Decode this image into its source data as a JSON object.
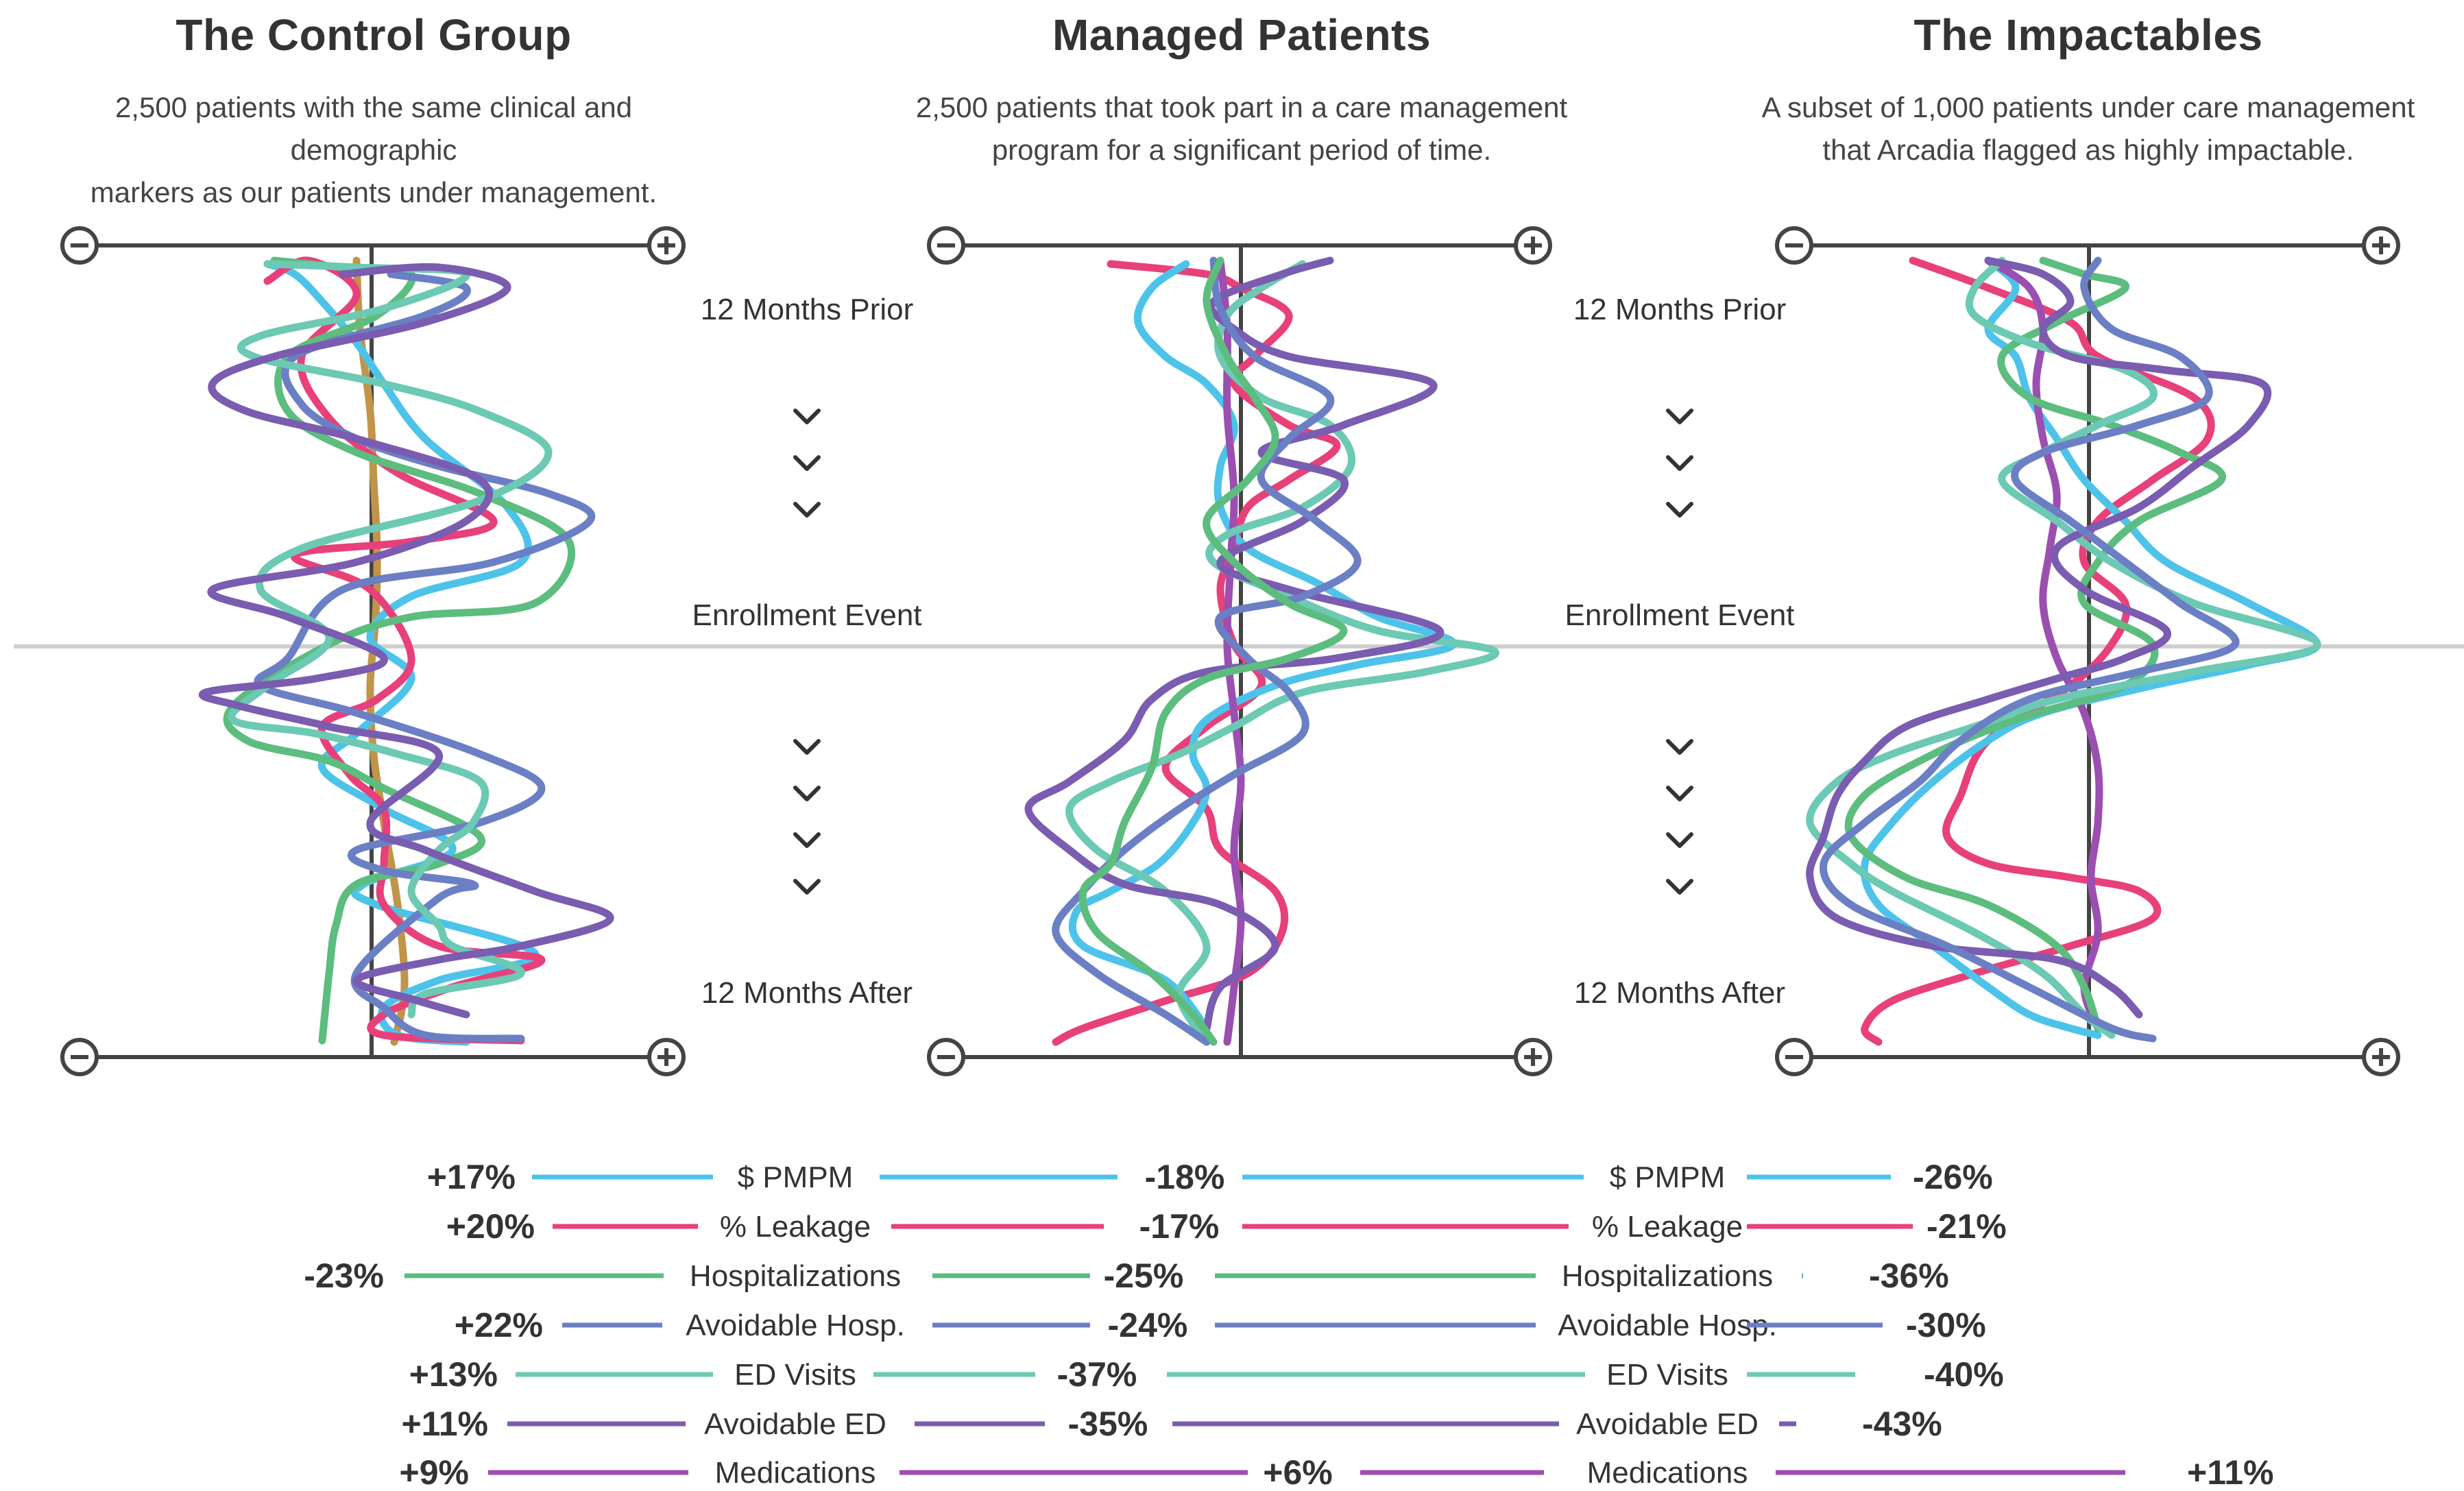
{
  "panels": [
    {
      "title": "The Control Group",
      "subtitle_line1": "2,500 patients with the same clinical and demographic",
      "subtitle_line2": "markers as our patients under management."
    },
    {
      "title": "Managed Patients",
      "subtitle_line1": "2,500 patients that took part in a care management",
      "subtitle_line2": "program for a significant period of time."
    },
    {
      "title": "The Impactables",
      "subtitle_line1": "A subset of 1,000 patients under care management",
      "subtitle_line2": "that Arcadia flagged as highly impactable."
    }
  ],
  "timeline_labels": {
    "prior": "12 Months Prior",
    "event": "Enrollment Event",
    "after": "12 Months After"
  },
  "colors": {
    "pmpm": "#4dc3ea",
    "leakage": "#e8407a",
    "hosp": "#5cbd7e",
    "avoid_hosp": "#6b7fc4",
    "ed": "#6cc9b4",
    "avoid_ed": "#7a5cb0",
    "meds": "#9b4fb0",
    "control_axis": "#c0954a"
  },
  "chart_data": [
    {
      "type": "line",
      "title": "The Control Group",
      "series": [
        {
          "name": "$ PMPM",
          "change": "+17%"
        },
        {
          "name": "% Leakage",
          "change": "+20%"
        },
        {
          "name": "Hospitalizations",
          "change": "-23%"
        },
        {
          "name": "Avoidable Hosp.",
          "change": "+22%"
        },
        {
          "name": "ED Visits",
          "change": "+13%"
        },
        {
          "name": "Avoidable ED",
          "change": "+11%"
        },
        {
          "name": "Medications",
          "change": "+9%"
        }
      ]
    },
    {
      "type": "line",
      "title": "Managed Patients",
      "series": [
        {
          "name": "$ PMPM",
          "change": "-18%"
        },
        {
          "name": "% Leakage",
          "change": "-17%"
        },
        {
          "name": "Hospitalizations",
          "change": "-25%"
        },
        {
          "name": "Avoidable Hosp.",
          "change": "-24%"
        },
        {
          "name": "ED Visits",
          "change": "-37%"
        },
        {
          "name": "Avoidable ED",
          "change": "-35%"
        },
        {
          "name": "Medications",
          "change": "+6%"
        }
      ]
    },
    {
      "type": "line",
      "title": "The Impactables",
      "series": [
        {
          "name": "$ PMPM",
          "change": "-26%"
        },
        {
          "name": "% Leakage",
          "change": "-21%"
        },
        {
          "name": "Hospitalizations",
          "change": "-36%"
        },
        {
          "name": "Avoidable Hosp.",
          "change": "-30%"
        },
        {
          "name": "ED Visits",
          "change": "-40%"
        },
        {
          "name": "Avoidable ED",
          "change": "-43%"
        },
        {
          "name": "Medications",
          "change": "+11%"
        }
      ]
    }
  ],
  "legend": {
    "labels_managed": [
      "$ PMPM",
      "% Leakage",
      "Hospitalizations",
      "Avoidable Hosp.",
      "ED Visits",
      "Avoidable ED",
      "Medications"
    ],
    "labels_impactables": [
      "$ PMPM",
      "% Leakage",
      "Hospitalizations",
      "Avoidable Hosp.",
      "ED Visits",
      "Avoidable ED",
      "Medications"
    ]
  }
}
